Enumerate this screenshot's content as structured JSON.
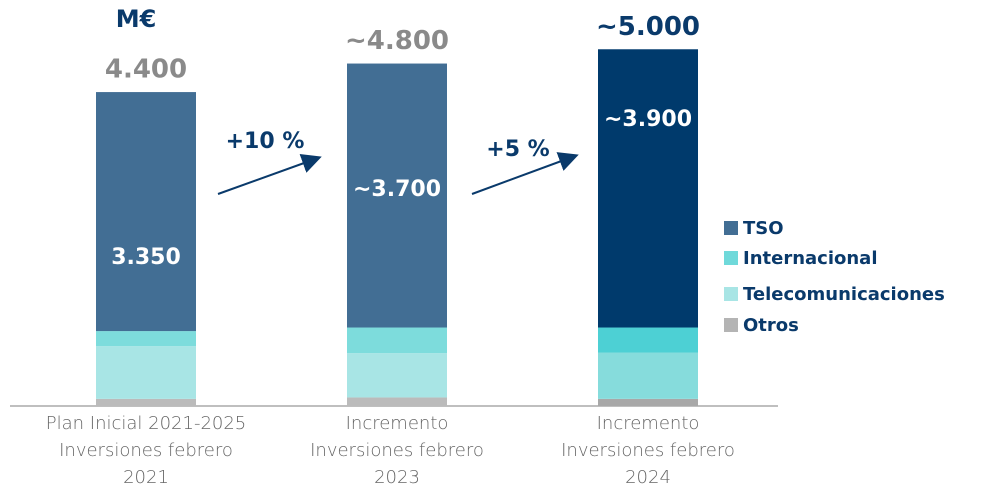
{
  "chart_data": {
    "type": "stacked_bar",
    "unit": "M€",
    "categories": [
      "Plan Inicial 2021-2025\nInversiones febrero\n2021",
      "Incremento\nInversiones febrero\n2023",
      "Incremento\nInversiones febrero\n2024"
    ],
    "series": [
      {
        "name": "TSO",
        "color": "#426e94",
        "colors": [
          "#426e94",
          "#426e94",
          "#003a6c"
        ],
        "values": [
          3350,
          3700,
          3900
        ],
        "value_labels": [
          "3.350",
          "~3.700",
          "~3.900"
        ]
      },
      {
        "name": "Internacional",
        "color": "#6fd9da",
        "colors": [
          "#7ddcdc",
          "#7ddcdc",
          "#4dd0d4"
        ],
        "values": [
          210,
          360,
          350
        ]
      },
      {
        "name": "Telecomunicaciones",
        "color": "#a8e5e5",
        "colors": [
          "#a8e5e5",
          "#a8e5e5",
          "#86dcdc"
        ],
        "values": [
          740,
          620,
          650
        ]
      },
      {
        "name": "Otros",
        "color": "#b4b4b4",
        "colors": [
          "#bbbbbb",
          "#bbbbbb",
          "#a8a8a8"
        ],
        "values": [
          100,
          120,
          100
        ]
      }
    ],
    "totals": {
      "values": [
        4400,
        4800,
        5000
      ],
      "value_labels": [
        "4.400",
        "~4.800",
        "~5.000"
      ],
      "colors": [
        "#8a8a8a",
        "#8a8a8a",
        "#0a3a6b"
      ]
    },
    "annotations": [
      "+10 %",
      "+5 %"
    ],
    "ylim": [
      0,
      5200
    ],
    "legend": "right"
  }
}
